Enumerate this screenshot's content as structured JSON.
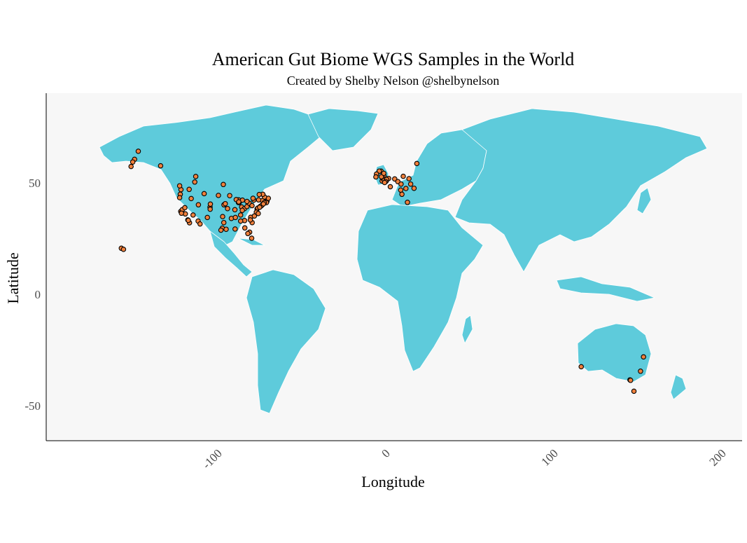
{
  "chart_data": {
    "type": "map",
    "title": "American Gut Biome WGS Samples in the World",
    "subtitle": "Created by Shelby Nelson @shelbynelson",
    "xlabel": "Longitude",
    "ylabel": "Latitude",
    "xlim": [
      -200,
      210
    ],
    "ylim": [
      -65,
      92
    ],
    "x_ticks": [
      "-100",
      "0",
      "100",
      "200"
    ],
    "x_tick_values": [
      -100,
      0,
      100,
      200
    ],
    "y_ticks": [
      "50",
      "0",
      "-50"
    ],
    "y_tick_values": [
      50,
      0,
      -50
    ],
    "grid": false,
    "colors": {
      "land": "#5ecbdb",
      "points": "#f0803c",
      "point_outline": "#000000",
      "panel": "#f7f7f7",
      "border": "#ffffff"
    },
    "points": [
      [
        -149.9,
        61.2
      ],
      [
        -147.7,
        64.8
      ],
      [
        -151.0,
        60.0
      ],
      [
        -134.4,
        58.3
      ],
      [
        -152.0,
        58.0
      ],
      [
        -157.8,
        21.3
      ],
      [
        -156.5,
        20.8
      ],
      [
        -122.3,
        47.6
      ],
      [
        -122.7,
        45.5
      ],
      [
        -123.1,
        44.0
      ],
      [
        -122.4,
        37.8
      ],
      [
        -121.9,
        37.3
      ],
      [
        -121.5,
        38.6
      ],
      [
        -118.2,
        34.0
      ],
      [
        -117.2,
        32.7
      ],
      [
        -117.9,
        33.8
      ],
      [
        -119.7,
        36.7
      ],
      [
        -122.0,
        37.0
      ],
      [
        -120.0,
        39.5
      ],
      [
        -116.2,
        43.6
      ],
      [
        -117.4,
        47.7
      ],
      [
        -111.9,
        40.8
      ],
      [
        -112.1,
        33.5
      ],
      [
        -110.9,
        32.2
      ],
      [
        -115.1,
        36.2
      ],
      [
        -106.6,
        35.1
      ],
      [
        -105.0,
        39.7
      ],
      [
        -104.8,
        41.1
      ],
      [
        -108.5,
        45.8
      ],
      [
        -96.7,
        40.8
      ],
      [
        -97.5,
        35.5
      ],
      [
        -95.9,
        41.3
      ],
      [
        -96.8,
        32.8
      ],
      [
        -97.7,
        30.3
      ],
      [
        -95.4,
        29.8
      ],
      [
        -98.5,
        29.4
      ],
      [
        -94.6,
        39.1
      ],
      [
        -93.3,
        44.9
      ],
      [
        -90.2,
        38.6
      ],
      [
        -90.1,
        29.9
      ],
      [
        -87.6,
        41.9
      ],
      [
        -88.0,
        43.0
      ],
      [
        -89.4,
        43.1
      ],
      [
        -86.2,
        39.8
      ],
      [
        -84.5,
        39.1
      ],
      [
        -83.0,
        40.0
      ],
      [
        -81.7,
        41.5
      ],
      [
        -83.0,
        42.3
      ],
      [
        -85.7,
        42.9
      ],
      [
        -84.4,
        33.7
      ],
      [
        -86.8,
        33.5
      ],
      [
        -86.8,
        36.2
      ],
      [
        -85.8,
        38.3
      ],
      [
        -80.8,
        35.2
      ],
      [
        -78.6,
        35.8
      ],
      [
        -79.9,
        32.8
      ],
      [
        -81.4,
        28.5
      ],
      [
        -80.2,
        25.8
      ],
      [
        -82.5,
        27.9
      ],
      [
        -77.0,
        38.9
      ],
      [
        -76.6,
        39.3
      ],
      [
        -75.2,
        40.0
      ],
      [
        -74.0,
        40.7
      ],
      [
        -73.8,
        42.7
      ],
      [
        -71.1,
        42.4
      ],
      [
        -71.4,
        41.8
      ],
      [
        -72.7,
        41.8
      ],
      [
        -70.3,
        43.7
      ],
      [
        -72.6,
        44.3
      ],
      [
        -76.1,
        43.0
      ],
      [
        -78.9,
        42.9
      ],
      [
        -80.0,
        40.4
      ],
      [
        -77.4,
        37.5
      ],
      [
        -76.3,
        36.9
      ],
      [
        -88.1,
        41.8
      ],
      [
        -87.9,
        42.1
      ],
      [
        -74.5,
        40.3
      ],
      [
        -73.2,
        41.2
      ],
      [
        -75.5,
        39.7
      ],
      [
        -79.4,
        43.7
      ],
      [
        -73.6,
        45.5
      ],
      [
        -123.1,
        49.3
      ],
      [
        -114.1,
        51.0
      ],
      [
        -113.5,
        53.5
      ],
      [
        -97.1,
        49.9
      ],
      [
        -75.7,
        45.4
      ],
      [
        -100.0,
        45.0
      ],
      [
        -84.3,
        30.4
      ],
      [
        -81.0,
        34.0
      ],
      [
        -92.3,
        34.7
      ],
      [
        -89.9,
        35.1
      ],
      [
        -104.9,
        38.8
      ],
      [
        -0.1,
        51.5
      ],
      [
        -2.2,
        53.5
      ],
      [
        -1.5,
        53.8
      ],
      [
        -3.2,
        55.9
      ],
      [
        -4.3,
        55.9
      ],
      [
        -2.6,
        51.5
      ],
      [
        -1.9,
        52.5
      ],
      [
        1.3,
        52.6
      ],
      [
        -1.3,
        51.8
      ],
      [
        0.1,
        52.2
      ],
      [
        -3.0,
        53.4
      ],
      [
        -1.6,
        54.9
      ],
      [
        -5.9,
        54.6
      ],
      [
        -6.3,
        53.3
      ],
      [
        -0.5,
        51.2
      ],
      [
        -1.1,
        50.8
      ],
      [
        2.3,
        48.9
      ],
      [
        4.9,
        52.4
      ],
      [
        6.8,
        51.2
      ],
      [
        8.7,
        50.1
      ],
      [
        10.0,
        53.6
      ],
      [
        13.4,
        52.5
      ],
      [
        11.6,
        48.1
      ],
      [
        8.5,
        47.4
      ],
      [
        14.4,
        50.1
      ],
      [
        12.5,
        41.9
      ],
      [
        9.2,
        45.5
      ],
      [
        16.4,
        48.2
      ],
      [
        18.1,
        59.3
      ],
      [
        151.2,
        -33.9
      ],
      [
        144.9,
        -37.8
      ],
      [
        145.3,
        -38.0
      ],
      [
        115.9,
        -31.9
      ],
      [
        153.0,
        -27.5
      ],
      [
        147.3,
        -42.9
      ]
    ]
  }
}
